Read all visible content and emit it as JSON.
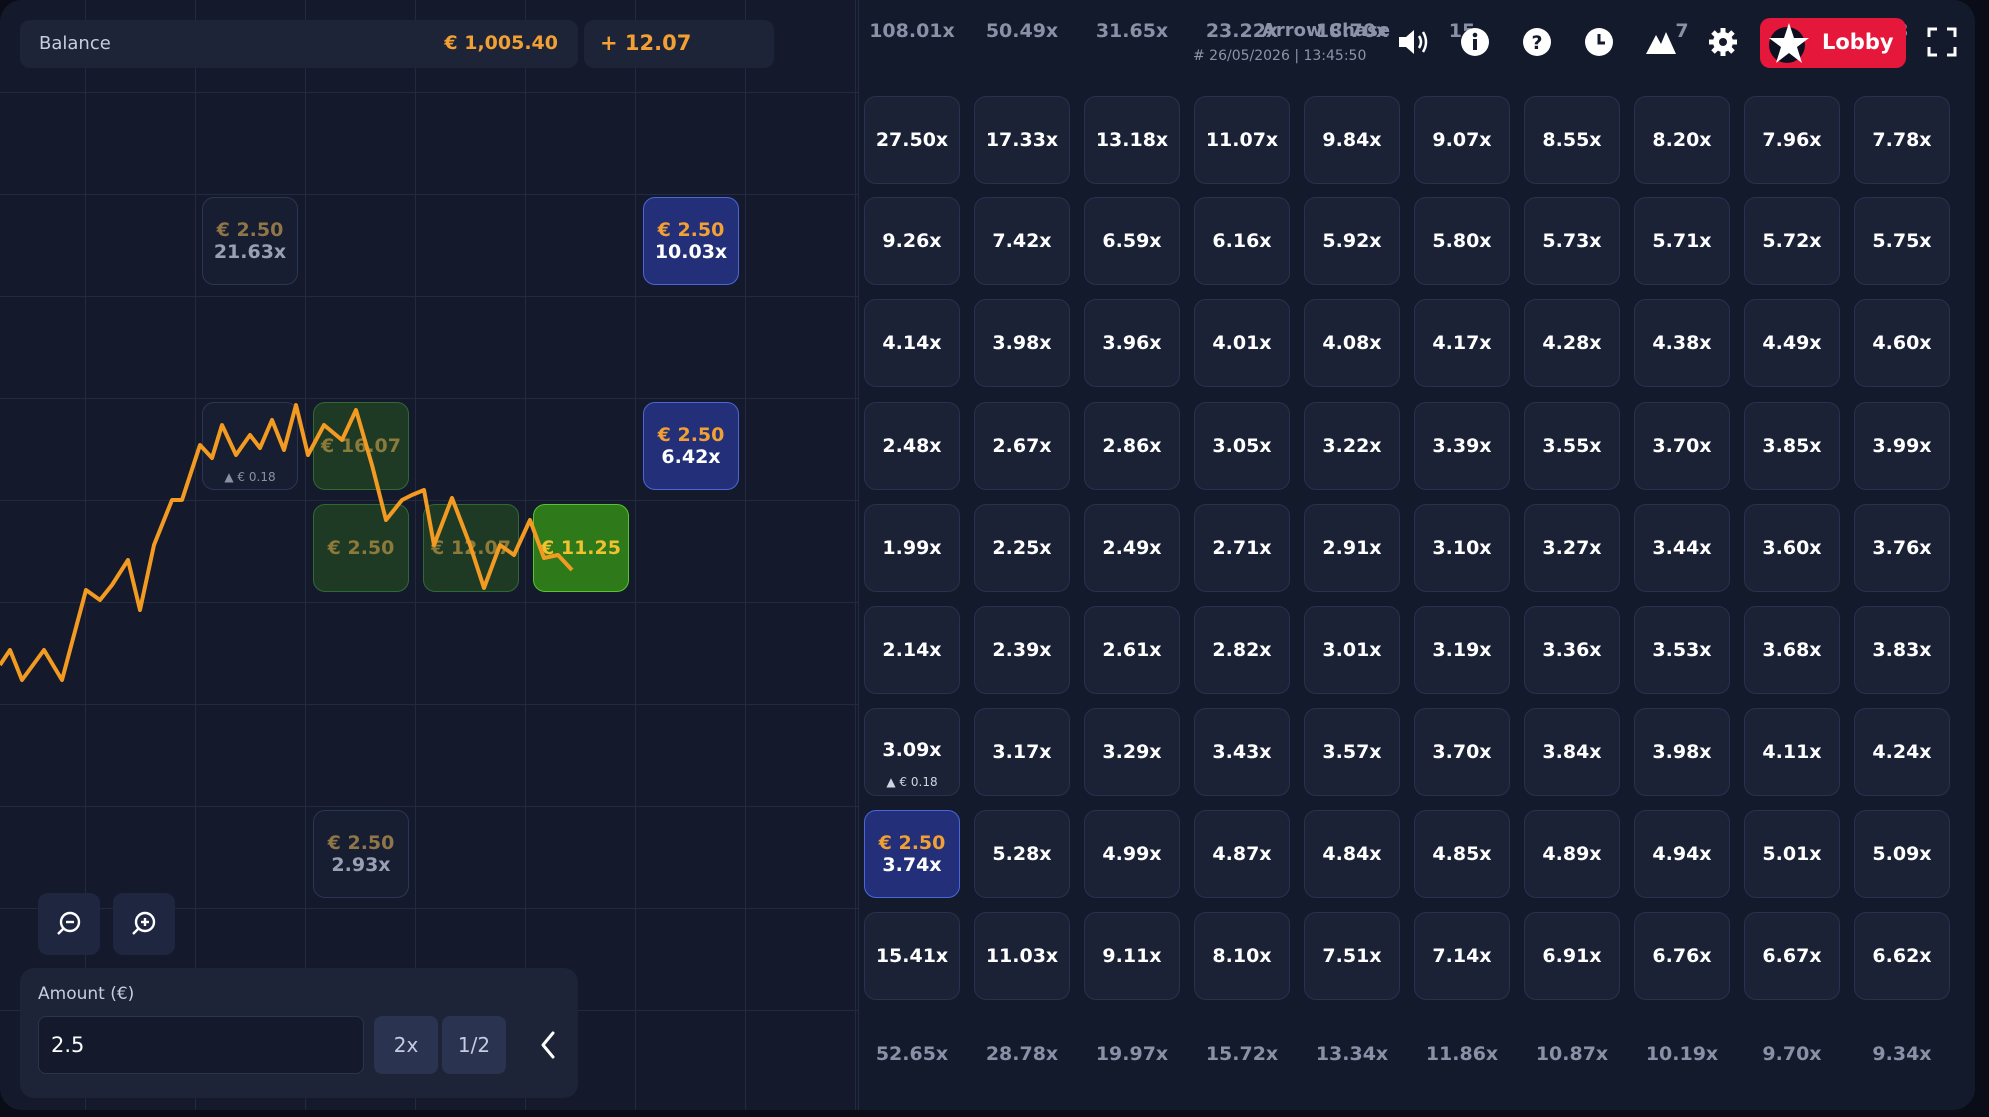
{
  "header": {
    "balance_label": "Balance",
    "balance_value": "€ 1,005.40",
    "profit_value": "+ 12.07",
    "game_title": "Arrow Chase",
    "round_info": "# 26/05/2026 | 13:45:50",
    "lobby_label": "Lobby"
  },
  "icons": [
    "volume-icon",
    "info-icon",
    "help-icon",
    "history-icon",
    "limits-icon",
    "gear-icon",
    "lobby-star-icon",
    "fullscreen-icon"
  ],
  "top_row": [
    "108.01x",
    "50.49x",
    "31.65x",
    "23.22x",
    "18.70x",
    "15",
    "",
    "7",
    "",
    "3"
  ],
  "grid": [
    [
      "27.50x",
      "17.33x",
      "13.18x",
      "11.07x",
      "9.84x",
      "9.07x",
      "8.55x",
      "8.20x",
      "7.96x",
      "7.78x"
    ],
    [
      "9.26x",
      "7.42x",
      "6.59x",
      "6.16x",
      "5.92x",
      "5.80x",
      "5.73x",
      "5.71x",
      "5.72x",
      "5.75x"
    ],
    [
      "4.14x",
      "3.98x",
      "3.96x",
      "4.01x",
      "4.08x",
      "4.17x",
      "4.28x",
      "4.38x",
      "4.49x",
      "4.60x"
    ],
    [
      "2.48x",
      "2.67x",
      "2.86x",
      "3.05x",
      "3.22x",
      "3.39x",
      "3.55x",
      "3.70x",
      "3.85x",
      "3.99x"
    ],
    [
      "1.99x",
      "2.25x",
      "2.49x",
      "2.71x",
      "2.91x",
      "3.10x",
      "3.27x",
      "3.44x",
      "3.60x",
      "3.76x"
    ],
    [
      "2.14x",
      "2.39x",
      "2.61x",
      "2.82x",
      "3.01x",
      "3.19x",
      "3.36x",
      "3.53x",
      "3.68x",
      "3.83x"
    ],
    [
      "3.09x",
      "3.17x",
      "3.29x",
      "3.43x",
      "3.57x",
      "3.70x",
      "3.84x",
      "3.98x",
      "4.11x",
      "4.24x"
    ],
    [
      "3.74x",
      "5.28x",
      "4.99x",
      "4.87x",
      "4.84x",
      "4.85x",
      "4.89x",
      "4.94x",
      "5.01x",
      "5.09x"
    ],
    [
      "15.41x",
      "11.03x",
      "9.11x",
      "8.10x",
      "7.51x",
      "7.14x",
      "6.91x",
      "6.76x",
      "6.67x",
      "6.62x"
    ],
    [
      "52.65x",
      "28.78x",
      "19.97x",
      "15.72x",
      "13.34x",
      "11.86x",
      "10.87x",
      "10.19x",
      "9.70x",
      "9.34x"
    ]
  ],
  "grid_sub": "▲ € 0.18",
  "selected_bet": {
    "amount": "€ 2.50",
    "mult": "3.74x"
  },
  "left_cards": {
    "c1": {
      "amount": "€ 2.50",
      "mult": "21.63x"
    },
    "c2": {
      "amount": "€ 2.50",
      "mult": "10.03x"
    },
    "c3": {
      "sub": "▲ € 0.18"
    },
    "c4": {
      "amount": "€ 16.07"
    },
    "c5": {
      "amount": "€ 2.50",
      "mult": "6.42x"
    },
    "c6": {
      "amount": "€ 2.50"
    },
    "c7": {
      "amount": "€ 12.07"
    },
    "c8": {
      "amount": "€ 11.25"
    },
    "c9": {
      "amount": "€ 2.50",
      "mult": "2.93x"
    }
  },
  "amount_panel": {
    "label": "Amount (€)",
    "value": "2.5",
    "double_label": "2x",
    "half_label": "1/2"
  },
  "colors": {
    "accent": "#f2a033",
    "lobby": "#e5173a",
    "win": "#2e7a1a",
    "selected": "#233079"
  }
}
